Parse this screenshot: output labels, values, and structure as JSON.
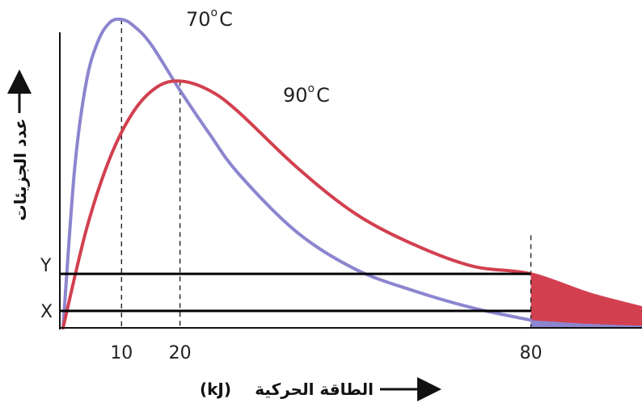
{
  "chart_data": {
    "type": "line",
    "xlabel_text": "الطاقة الحركية",
    "xlabel_unit": "(kJ)",
    "ylabel": "عدد الجزيئات",
    "xticks": [
      "10",
      "20",
      "80"
    ],
    "xtick_values": [
      10,
      20,
      80
    ],
    "xlim": [
      0,
      99
    ],
    "ylim": [
      0,
      100
    ],
    "series": [
      {
        "name": "70",
        "unit": "C",
        "color": "#8c85cf",
        "peak_x": 10,
        "x": [
          0,
          2,
          4,
          6,
          8,
          10,
          12,
          15,
          20,
          25,
          30,
          40,
          50,
          60,
          70,
          80
        ],
        "y": [
          0,
          52,
          80,
          93,
          99,
          100,
          98,
          92,
          77,
          63,
          50,
          31,
          19,
          12,
          6.5,
          2.5
        ]
      },
      {
        "name": "90",
        "unit": "C",
        "color": "#d2404f",
        "peak_x": 20,
        "x": [
          0,
          4,
          8,
          12,
          16,
          20,
          25,
          30,
          40,
          50,
          60,
          70,
          80,
          90,
          99
        ],
        "y": [
          0,
          32,
          55,
          70,
          78,
          80,
          77,
          70,
          52,
          37,
          27,
          20,
          17.5,
          11,
          6.5
        ]
      }
    ],
    "levels": [
      {
        "label": "Y",
        "value": 17.5
      },
      {
        "label": "X",
        "value": 5.5
      }
    ],
    "shaded_region_x_from": 80
  }
}
